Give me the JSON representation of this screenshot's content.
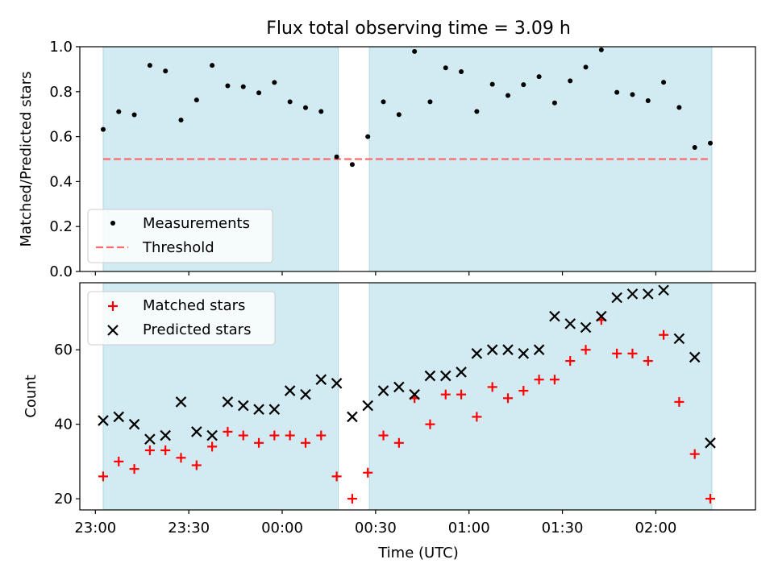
{
  "chart_data": {
    "type": "scatter",
    "title": "Flux total observing time = 3.09 h",
    "xlabel": "Time (UTC)",
    "x_tick_labels": [
      "23:00",
      "23:30",
      "00:00",
      "00:30",
      "01:00",
      "01:30",
      "02:00"
    ],
    "x_tick_minutes": [
      0,
      30,
      60,
      90,
      120,
      150,
      180
    ],
    "x_range_minutes": [
      -5,
      212
    ],
    "x_origin_time": "23:00",
    "shaded_intervals_minutes": [
      [
        2.5,
        78
      ],
      [
        88,
        198
      ]
    ],
    "shade_color": "#add8e6",
    "times_minutes": [
      2.5,
      7.5,
      12.5,
      17.5,
      22.5,
      27.5,
      32.5,
      37.5,
      42.5,
      47.5,
      52.5,
      57.5,
      62.5,
      67.5,
      72.5,
      77.5,
      82.5,
      87.5,
      92.5,
      97.5,
      102.5,
      107.5,
      112.5,
      117.5,
      122.5,
      127.5,
      132.5,
      137.5,
      142.5,
      147.5,
      152.5,
      157.5,
      162.5,
      167.5,
      172.5,
      177.5,
      182.5,
      187.5,
      192.5,
      197.5
    ],
    "panels": [
      {
        "ylabel": "Matched/Predicted stars",
        "ylim": [
          0,
          1.0
        ],
        "y_ticks": [
          0.0,
          0.2,
          0.4,
          0.6,
          0.8,
          1.0
        ],
        "y_tick_labels": [
          "0.0",
          "0.2",
          "0.4",
          "0.6",
          "0.8",
          "1.0"
        ],
        "legend": "lower-left",
        "series": [
          {
            "name": "Measurements",
            "marker": "dot",
            "color": "#000000",
            "values": [
              0.632,
              0.711,
              0.697,
              0.917,
              0.892,
              0.674,
              0.763,
              0.917,
              0.826,
              0.822,
              0.795,
              0.841,
              0.755,
              0.729,
              0.712,
              0.51,
              0.476,
              0.6,
              0.755,
              0.698,
              0.979,
              0.755,
              0.906,
              0.889,
              0.712,
              0.833,
              0.783,
              0.831,
              0.867,
              0.75,
              0.848,
              0.909,
              0.986,
              0.797,
              0.787,
              0.76,
              0.842,
              0.73,
              0.552,
              0.571
            ]
          }
        ],
        "threshold": {
          "name": "Threshold",
          "value": 0.5,
          "x_range_minutes": [
            2.5,
            197.5
          ],
          "color": "#ff6b6b",
          "style": "dashed"
        }
      },
      {
        "ylabel": "Count",
        "ylim": [
          17,
          78
        ],
        "y_ticks": [
          20,
          40,
          60
        ],
        "y_tick_labels": [
          "20",
          "40",
          "60"
        ],
        "legend": "upper-left",
        "series": [
          {
            "name": "Matched stars",
            "marker": "plus",
            "color": "#ff0000",
            "values": [
              26,
              30,
              28,
              33,
              33,
              31,
              29,
              34,
              38,
              37,
              35,
              37,
              37,
              35,
              37,
              26,
              20,
              27,
              37,
              35,
              47,
              40,
              48,
              48,
              42,
              50,
              47,
              49,
              52,
              52,
              57,
              60,
              68,
              59,
              59,
              57,
              64,
              46,
              32,
              20
            ]
          },
          {
            "name": "Predicted stars",
            "marker": "x",
            "color": "#000000",
            "values": [
              41,
              42,
              40,
              36,
              37,
              46,
              38,
              37,
              46,
              45,
              44,
              44,
              49,
              48,
              52,
              51,
              42,
              45,
              49,
              50,
              48,
              53,
              53,
              54,
              59,
              60,
              60,
              59,
              60,
              69,
              67,
              66,
              69,
              74,
              75,
              75,
              76,
              63,
              58,
              35
            ]
          }
        ]
      }
    ]
  }
}
